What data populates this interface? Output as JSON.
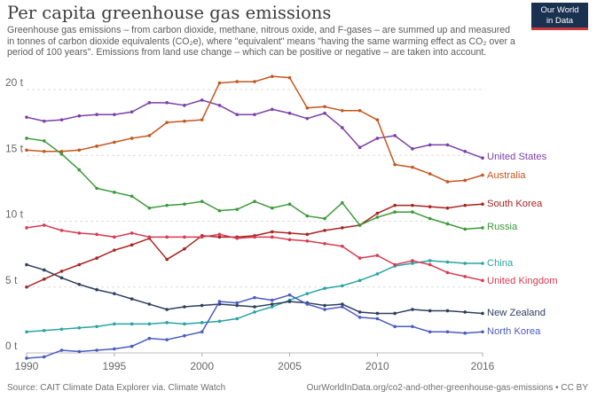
{
  "header": {
    "title": "Per capita greenhouse gas emissions",
    "subtitle": "Greenhouse gas emissions – from carbon dioxide, methane, nitrous oxide, and F-gases – are summed up and measured in tonnes of carbon dioxide equivalents (CO₂e), where \"equivalent\" means \"having the same warming effect as CO₂ over a period of 100 years\". Emissions from land use change – which can be positive or negative – are taken into account.",
    "logo_line1": "Our World",
    "logo_line2": "in Data"
  },
  "footer": {
    "source": "Source: CAIT Climate Data Explorer via. Climate Watch",
    "url": "OurWorldInData.org/co2-and-other-greenhouse-gas-emissions • CC BY"
  },
  "chart_data": {
    "type": "line",
    "title": "Per capita greenhouse gas emissions",
    "xlabel": "",
    "ylabel": "",
    "xlim": [
      1990,
      2016
    ],
    "ylim": [
      0,
      20
    ],
    "y_ticks": [
      0,
      5,
      10,
      15,
      20
    ],
    "y_tick_labels": [
      "0 t",
      "5 t",
      "10 t",
      "15 t",
      "20 t"
    ],
    "x_ticks": [
      1990,
      1995,
      2000,
      2005,
      2010,
      2016
    ],
    "x_tick_labels": [
      "1990",
      "1995",
      "2000",
      "2005",
      "2010",
      "2016"
    ],
    "grid": "horizontal dashed",
    "legend": "labels at line ends (right)",
    "x": [
      1990,
      1991,
      1992,
      1993,
      1994,
      1995,
      1996,
      1997,
      1998,
      1999,
      2000,
      2001,
      2002,
      2003,
      2004,
      2005,
      2006,
      2007,
      2008,
      2009,
      2010,
      2011,
      2012,
      2013,
      2014,
      2015,
      2016
    ],
    "series": [
      {
        "name": "United States",
        "color": "#7b3fa8",
        "values": [
          17.9,
          17.6,
          17.7,
          18.0,
          18.1,
          18.1,
          18.3,
          19.0,
          19.0,
          18.8,
          19.2,
          18.8,
          18.1,
          18.1,
          18.5,
          18.2,
          17.8,
          18.2,
          17.1,
          15.6,
          16.3,
          16.5,
          15.5,
          15.8,
          15.8,
          15.3,
          14.8
        ]
      },
      {
        "name": "Australia",
        "color": "#c4561e",
        "values": [
          15.4,
          15.3,
          15.3,
          15.4,
          15.7,
          16.0,
          16.3,
          16.5,
          17.5,
          17.6,
          17.7,
          20.5,
          20.6,
          20.6,
          21.0,
          20.9,
          18.6,
          18.7,
          18.4,
          18.4,
          17.7,
          14.3,
          14.1,
          13.6,
          13.0,
          13.1,
          13.5
        ]
      },
      {
        "name": "South Korea",
        "color": "#a8231f",
        "values": [
          5.0,
          5.6,
          6.2,
          6.7,
          7.2,
          7.8,
          8.2,
          8.7,
          7.1,
          7.9,
          8.9,
          8.8,
          8.8,
          8.9,
          9.2,
          9.1,
          9.0,
          9.3,
          9.5,
          9.7,
          10.6,
          11.2,
          11.2,
          11.1,
          11.0,
          11.2,
          11.3
        ]
      },
      {
        "name": "Russia",
        "color": "#3b9a3a",
        "values": [
          16.3,
          16.1,
          15.1,
          13.9,
          12.5,
          12.2,
          11.9,
          11.0,
          11.2,
          11.3,
          11.5,
          10.8,
          10.9,
          11.5,
          11.0,
          11.3,
          10.4,
          10.2,
          11.4,
          9.7,
          10.3,
          10.7,
          10.7,
          10.2,
          9.8,
          9.4,
          9.5
        ]
      },
      {
        "name": "China",
        "color": "#2aa3a3",
        "values": [
          1.6,
          1.7,
          1.8,
          1.9,
          2.0,
          2.2,
          2.2,
          2.2,
          2.3,
          2.2,
          2.3,
          2.4,
          2.6,
          3.1,
          3.5,
          4.0,
          4.5,
          4.9,
          5.1,
          5.5,
          6.0,
          6.6,
          6.8,
          7.0,
          6.9,
          6.8,
          6.8
        ]
      },
      {
        "name": "United Kingdom",
        "color": "#d63a52",
        "values": [
          9.5,
          9.7,
          9.3,
          9.1,
          9.0,
          8.8,
          9.1,
          8.8,
          8.8,
          8.8,
          8.8,
          9.0,
          8.7,
          8.8,
          8.8,
          8.6,
          8.5,
          8.3,
          8.1,
          7.2,
          7.4,
          6.7,
          7.0,
          6.7,
          6.1,
          5.8,
          5.5
        ]
      },
      {
        "name": "New Zealand",
        "color": "#2e3f5e",
        "values": [
          6.7,
          6.3,
          5.7,
          5.2,
          4.8,
          4.5,
          4.1,
          3.7,
          3.3,
          3.5,
          3.6,
          3.7,
          3.6,
          3.5,
          3.7,
          3.9,
          3.8,
          3.6,
          3.7,
          3.1,
          3.0,
          3.0,
          3.3,
          3.2,
          3.2,
          3.1,
          3.0
        ]
      },
      {
        "name": "North Korea",
        "color": "#4a5bc4",
        "values": [
          -0.4,
          -0.3,
          0.2,
          0.1,
          0.2,
          0.3,
          0.5,
          1.1,
          1.0,
          1.3,
          1.6,
          3.9,
          3.8,
          4.2,
          4.0,
          4.4,
          3.7,
          3.3,
          3.5,
          2.7,
          2.6,
          2.0,
          2.0,
          1.6,
          1.6,
          1.5,
          1.6
        ]
      }
    ]
  }
}
